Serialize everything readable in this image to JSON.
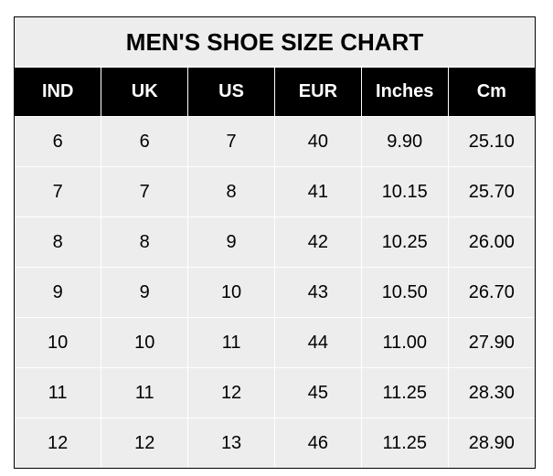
{
  "title": "MEN'S SHOE SIZE CHART",
  "headers": [
    "IND",
    "UK",
    "US",
    "EUR",
    "Inches",
    "Cm"
  ],
  "rows": [
    [
      "6",
      "6",
      "7",
      "40",
      "9.90",
      "25.10"
    ],
    [
      "7",
      "7",
      "8",
      "41",
      "10.15",
      "25.70"
    ],
    [
      "8",
      "8",
      "9",
      "42",
      "10.25",
      "26.00"
    ],
    [
      "9",
      "9",
      "10",
      "43",
      "10.50",
      "26.70"
    ],
    [
      "10",
      "10",
      "11",
      "44",
      "11.00",
      "27.90"
    ],
    [
      "11",
      "11",
      "12",
      "45",
      "11.25",
      "28.30"
    ],
    [
      "12",
      "12",
      "13",
      "46",
      "11.25",
      "28.90"
    ]
  ]
}
